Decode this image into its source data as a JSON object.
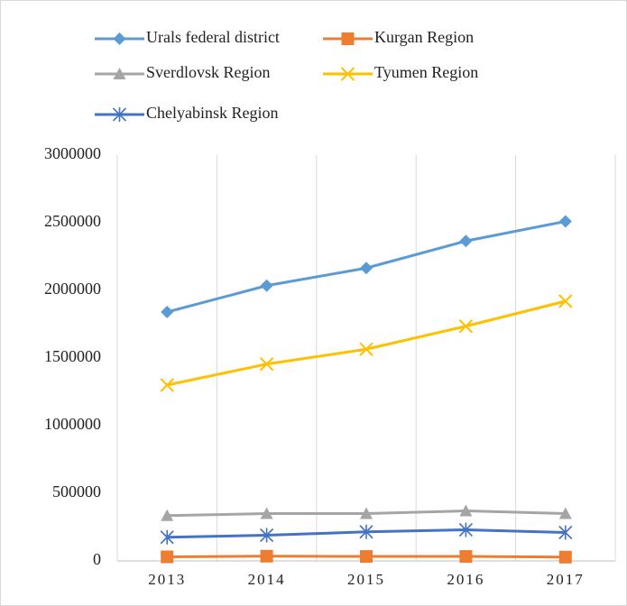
{
  "chart_data": {
    "type": "line",
    "categories": [
      "2013",
      "2014",
      "2015",
      "2016",
      "2017"
    ],
    "series": [
      {
        "name": "Urals federal district",
        "color": "#5b9bd5",
        "marker": "diamond",
        "values": [
          1840000,
          2035000,
          2165000,
          2365000,
          2510000
        ]
      },
      {
        "name": "Kurgan Region",
        "color": "#ed7d31",
        "marker": "square",
        "values": [
          30000,
          35000,
          33000,
          33000,
          28000
        ]
      },
      {
        "name": "Sverdlovsk Region",
        "color": "#a5a5a5",
        "marker": "triangle",
        "values": [
          335000,
          350000,
          350000,
          370000,
          350000
        ]
      },
      {
        "name": "Tyumen Region",
        "color": "#ffc000",
        "marker": "x",
        "values": [
          1300000,
          1455000,
          1565000,
          1735000,
          1920000
        ]
      },
      {
        "name": "Chelyabinsk Region",
        "color": "#4472c4",
        "marker": "asterisk",
        "values": [
          175000,
          190000,
          215000,
          230000,
          210000
        ]
      }
    ],
    "ylim": [
      0,
      3000000
    ],
    "yticks": [
      0,
      500000,
      1000000,
      1500000,
      2000000,
      2500000,
      3000000
    ],
    "grid": true,
    "legend": "top"
  }
}
